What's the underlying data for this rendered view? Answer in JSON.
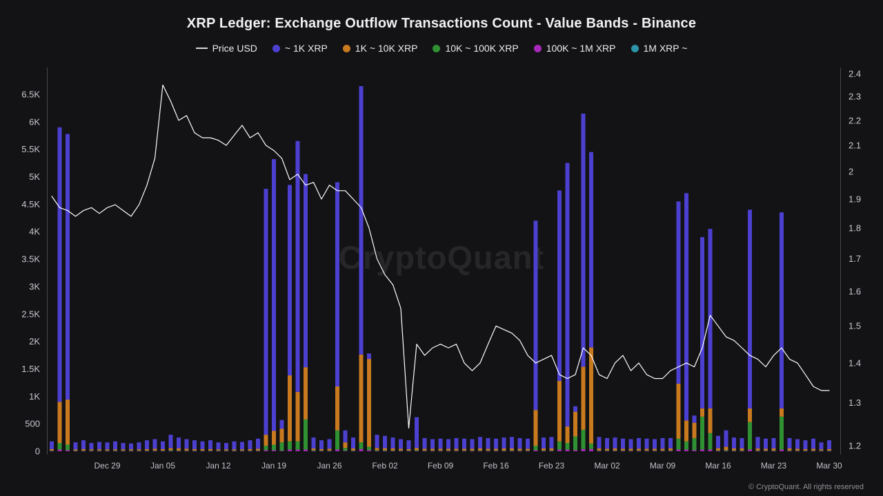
{
  "header": {
    "title": "XRP Ledger: Exchange Outflow Transactions Count - Value Bands - Binance"
  },
  "watermark": {
    "text": "CryptoQuant"
  },
  "footer": {
    "copyright": "© CryptoQuant. All rights reserved"
  },
  "colors": {
    "background": "#131316",
    "price_line": "#ffffff",
    "band_1k": "#4c40d0",
    "band_10k": "#c97a1f",
    "band_100k": "#2f9132",
    "band_1m": "#a928b9",
    "band_1m_plus": "#2d93a8",
    "axis_text": "#c9c9ce",
    "axis_line": "#46464c"
  },
  "legend": {
    "items": [
      {
        "label": "Price USD",
        "type": "line",
        "color": "#d9d9d9"
      },
      {
        "label": "~ 1K XRP",
        "type": "dot",
        "color": "#4c40d0"
      },
      {
        "label": "1K ~ 10K XRP",
        "type": "dot",
        "color": "#c97a1f"
      },
      {
        "label": "10K ~ 100K XRP",
        "type": "dot",
        "color": "#2f9132"
      },
      {
        "label": "100K ~ 1M XRP",
        "type": "dot",
        "color": "#a928b9"
      },
      {
        "label": "1M XRP ~",
        "type": "dot",
        "color": "#2d93a8"
      }
    ]
  },
  "chart_data": {
    "type": "bar",
    "stacked": true,
    "grid": false,
    "legend_position": "top",
    "title": "XRP Ledger: Exchange Outflow Transactions Count - Value Bands - Binance",
    "categories": [
      "Dec 22",
      "Dec 23",
      "Dec 24",
      "Dec 25",
      "Dec 26",
      "Dec 27",
      "Dec 28",
      "Dec 29",
      "Dec 30",
      "Dec 31",
      "Jan 01",
      "Jan 02",
      "Jan 03",
      "Jan 04",
      "Jan 05",
      "Jan 06",
      "Jan 07",
      "Jan 08",
      "Jan 09",
      "Jan 10",
      "Jan 11",
      "Jan 12",
      "Jan 13",
      "Jan 14",
      "Jan 15",
      "Jan 16",
      "Jan 17",
      "Jan 18",
      "Jan 19",
      "Jan 20",
      "Jan 21",
      "Jan 22",
      "Jan 23",
      "Jan 24",
      "Jan 25",
      "Jan 26",
      "Jan 27",
      "Jan 28",
      "Jan 29",
      "Jan 30",
      "Jan 31",
      "Feb 01",
      "Feb 02",
      "Feb 03",
      "Feb 04",
      "Feb 05",
      "Feb 06",
      "Feb 07",
      "Feb 08",
      "Feb 09",
      "Feb 10",
      "Feb 11",
      "Feb 12",
      "Feb 13",
      "Feb 14",
      "Feb 15",
      "Feb 16",
      "Feb 17",
      "Feb 18",
      "Feb 19",
      "Feb 20",
      "Feb 21",
      "Feb 22",
      "Feb 23",
      "Feb 24",
      "Feb 25",
      "Feb 26",
      "Feb 27",
      "Feb 28",
      "Mar 01",
      "Mar 02",
      "Mar 03",
      "Mar 04",
      "Mar 05",
      "Mar 06",
      "Mar 07",
      "Mar 08",
      "Mar 09",
      "Mar 10",
      "Mar 11",
      "Mar 12",
      "Mar 13",
      "Mar 14",
      "Mar 15",
      "Mar 16",
      "Mar 17",
      "Mar 18",
      "Mar 19",
      "Mar 20",
      "Mar 21",
      "Mar 22",
      "Mar 23",
      "Mar 24",
      "Mar 25",
      "Mar 26",
      "Mar 27",
      "Mar 28",
      "Mar 29",
      "Mar 30"
    ],
    "series": [
      {
        "name": "~ 1K XRP",
        "color": "#4c40d0",
        "values": [
          140,
          5000,
          4840,
          130,
          160,
          115,
          135,
          125,
          145,
          115,
          105,
          125,
          160,
          175,
          140,
          245,
          200,
          175,
          160,
          140,
          160,
          125,
          115,
          145,
          135,
          160,
          185,
          4480,
          4950,
          160,
          3470,
          4570,
          3520,
          200,
          160,
          175,
          3720,
          220,
          200,
          4890,
          100,
          240,
          225,
          200,
          175,
          160,
          560,
          195,
          175,
          185,
          175,
          195,
          185,
          175,
          210,
          195,
          185,
          200,
          210,
          195,
          185,
          3450,
          200,
          210,
          3470,
          4800,
          100,
          4610,
          3560,
          210,
          195,
          200,
          185,
          175,
          195,
          185,
          175,
          195,
          190,
          3320,
          4140,
          130,
          3120,
          3270,
          225,
          300,
          200,
          190,
          3620,
          210,
          185,
          190,
          3570,
          190,
          175,
          160,
          185,
          125,
          160
        ]
      },
      {
        "name": "1K ~ 10K XRP",
        "color": "#c97a1f",
        "values": [
          25,
          750,
          820,
          20,
          25,
          20,
          20,
          20,
          20,
          20,
          20,
          20,
          25,
          30,
          25,
          35,
          35,
          30,
          25,
          25,
          25,
          20,
          20,
          20,
          20,
          25,
          30,
          200,
          250,
          250,
          1200,
          900,
          950,
          30,
          25,
          30,
          800,
          100,
          35,
          1600,
          1600,
          40,
          35,
          35,
          30,
          25,
          40,
          30,
          30,
          30,
          30,
          30,
          30,
          30,
          35,
          30,
          30,
          35,
          35,
          30,
          30,
          650,
          35,
          35,
          1100,
          300,
          450,
          1150,
          1750,
          35,
          30,
          35,
          30,
          30,
          30,
          30,
          30,
          30,
          35,
          1000,
          380,
          280,
          150,
          450,
          40,
          60,
          35,
          35,
          250,
          35,
          30,
          35,
          150,
          35,
          30,
          25,
          30,
          20,
          25
        ]
      },
      {
        "name": "10K ~ 100K XRP",
        "color": "#2f9132",
        "values": [
          10,
          120,
          100,
          8,
          10,
          10,
          10,
          10,
          10,
          10,
          10,
          10,
          10,
          10,
          10,
          15,
          10,
          10,
          10,
          10,
          10,
          10,
          10,
          10,
          10,
          10,
          10,
          80,
          100,
          150,
          150,
          150,
          550,
          15,
          10,
          10,
          350,
          50,
          10,
          120,
          60,
          15,
          15,
          10,
          10,
          10,
          15,
          10,
          10,
          10,
          10,
          10,
          10,
          10,
          10,
          10,
          10,
          10,
          10,
          10,
          10,
          80,
          10,
          10,
          150,
          120,
          250,
          350,
          100,
          10,
          10,
          10,
          10,
          10,
          10,
          10,
          10,
          10,
          10,
          200,
          150,
          220,
          600,
          300,
          10,
          15,
          10,
          10,
          500,
          10,
          10,
          10,
          600,
          10,
          10,
          10,
          10,
          10,
          10
        ]
      },
      {
        "name": "100K ~ 1M XRP",
        "color": "#a928b9",
        "values": [
          5,
          30,
          20,
          4,
          5,
          5,
          5,
          5,
          5,
          5,
          5,
          5,
          5,
          5,
          5,
          5,
          5,
          5,
          5,
          5,
          5,
          5,
          5,
          5,
          5,
          5,
          5,
          20,
          20,
          10,
          30,
          30,
          30,
          5,
          5,
          5,
          30,
          10,
          5,
          40,
          20,
          5,
          5,
          5,
          5,
          5,
          5,
          5,
          5,
          5,
          5,
          5,
          5,
          5,
          5,
          5,
          5,
          5,
          5,
          5,
          5,
          20,
          5,
          5,
          30,
          30,
          20,
          40,
          40,
          5,
          5,
          5,
          5,
          5,
          5,
          5,
          5,
          5,
          5,
          30,
          30,
          20,
          30,
          30,
          5,
          5,
          5,
          5,
          30,
          5,
          5,
          5,
          30,
          5,
          5,
          5,
          5,
          5,
          5
        ]
      },
      {
        "name": "1M XRP ~",
        "color": "#2d93a8",
        "values": [
          0,
          0,
          0,
          0,
          0,
          0,
          0,
          0,
          0,
          0,
          0,
          0,
          0,
          0,
          0,
          0,
          0,
          0,
          0,
          0,
          0,
          0,
          0,
          0,
          0,
          0,
          0,
          0,
          0,
          0,
          0,
          0,
          0,
          0,
          0,
          0,
          0,
          0,
          0,
          0,
          0,
          0,
          0,
          0,
          0,
          0,
          0,
          0,
          0,
          0,
          0,
          0,
          0,
          0,
          0,
          0,
          0,
          0,
          0,
          0,
          0,
          0,
          0,
          0,
          0,
          0,
          0,
          0,
          0,
          0,
          0,
          0,
          0,
          0,
          0,
          0,
          0,
          0,
          0,
          0,
          0,
          0,
          0,
          0,
          0,
          0,
          0,
          0,
          0,
          0,
          0,
          0,
          0,
          0,
          0,
          0,
          0,
          0,
          0
        ]
      }
    ],
    "line_series": {
      "name": "Price USD",
      "color": "#ffffff",
      "axis": "right",
      "values": [
        1.91,
        1.87,
        1.86,
        1.84,
        1.86,
        1.87,
        1.85,
        1.87,
        1.88,
        1.86,
        1.84,
        1.88,
        1.95,
        2.05,
        2.35,
        2.28,
        2.2,
        2.22,
        2.15,
        2.13,
        2.13,
        2.12,
        2.1,
        2.14,
        2.18,
        2.13,
        2.15,
        2.1,
        2.08,
        2.05,
        1.97,
        1.99,
        1.95,
        1.96,
        1.9,
        1.95,
        1.93,
        1.93,
        1.9,
        1.87,
        1.8,
        1.7,
        1.65,
        1.62,
        1.55,
        1.24,
        1.45,
        1.42,
        1.44,
        1.45,
        1.44,
        1.45,
        1.4,
        1.38,
        1.4,
        1.45,
        1.5,
        1.49,
        1.48,
        1.46,
        1.42,
        1.4,
        1.41,
        1.42,
        1.37,
        1.36,
        1.37,
        1.44,
        1.42,
        1.37,
        1.36,
        1.4,
        1.42,
        1.38,
        1.4,
        1.37,
        1.36,
        1.36,
        1.38,
        1.39,
        1.4,
        1.39,
        1.44,
        1.53,
        1.5,
        1.47,
        1.46,
        1.44,
        1.42,
        1.41,
        1.39,
        1.42,
        1.44,
        1.41,
        1.4,
        1.37,
        1.34,
        1.33,
        1.33
      ]
    },
    "left_axis": {
      "min": 0,
      "max": 6500,
      "ticks": [
        "0",
        "500",
        "1K",
        "1.5K",
        "2K",
        "2.5K",
        "3K",
        "3.5K",
        "4K",
        "4.5K",
        "5K",
        "5.5K",
        "6K",
        "6.5K"
      ],
      "tick_values": [
        0,
        500,
        1000,
        1500,
        2000,
        2500,
        3000,
        3500,
        4000,
        4500,
        5000,
        5500,
        6000,
        6500
      ]
    },
    "right_axis": {
      "min": 1.2,
      "max": 2.4,
      "scale": "log",
      "ticks": [
        "1.2",
        "1.3",
        "1.4",
        "1.5",
        "1.6",
        "1.7",
        "1.8",
        "1.9",
        "2",
        "2.1",
        "2.2",
        "2.3",
        "2.4"
      ],
      "tick_values": [
        1.2,
        1.3,
        1.4,
        1.5,
        1.6,
        1.7,
        1.8,
        1.9,
        2,
        2.1,
        2.2,
        2.3,
        2.4
      ]
    },
    "x_ticks": {
      "indices": [
        7,
        14,
        21,
        28,
        35,
        42,
        49,
        56,
        63,
        70,
        77,
        84,
        91,
        98
      ],
      "labels": [
        "Dec 29",
        "Jan 05",
        "Jan 12",
        "Jan 19",
        "Jan 26",
        "Feb 02",
        "Feb 09",
        "Feb 16",
        "Feb 23",
        "Mar 02",
        "Mar 09",
        "Mar 16",
        "Mar 23",
        "Mar 30"
      ]
    }
  }
}
